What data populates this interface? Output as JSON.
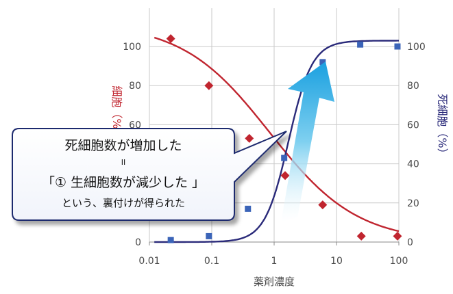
{
  "chart_data": {
    "type": "line",
    "xscale": "log",
    "xlim": [
      0.01,
      100
    ],
    "ylim": [
      0,
      110
    ],
    "x_ticks": [
      "0.01",
      "0.1",
      "1",
      "10",
      "100"
    ],
    "y_ticks": [
      "0",
      "20",
      "40",
      "60",
      "80",
      "100"
    ],
    "xlabel": "薬剤濃度",
    "ylabel_left": "細胞（%）",
    "ylabel_right": "死細胞（%）",
    "grid": true,
    "series": [
      {
        "axis": "left",
        "color": "#c0252f",
        "marker": "diamond",
        "points": [
          {
            "x": 0.022,
            "y": 104
          },
          {
            "x": 0.09,
            "y": 80
          },
          {
            "x": 0.4,
            "y": 53
          },
          {
            "x": 1.5,
            "y": 34
          },
          {
            "x": 6,
            "y": 19
          },
          {
            "x": 25,
            "y": 3
          },
          {
            "x": 95,
            "y": 3
          }
        ],
        "curve": {
          "top": 112,
          "bottom": 0,
          "ec50": 0.85,
          "slope": 0.62
        }
      },
      {
        "axis": "right",
        "color": "#2a2a7a",
        "marker_color": "#3b64b8",
        "marker": "square",
        "points": [
          {
            "x": 0.022,
            "y": 1
          },
          {
            "x": 0.09,
            "y": 3
          },
          {
            "x": 0.38,
            "y": 17
          },
          {
            "x": 1.45,
            "y": 43
          },
          {
            "x": 6,
            "y": 92
          },
          {
            "x": 24,
            "y": 101
          },
          {
            "x": 95,
            "y": 100
          }
        ],
        "curve": {
          "top": 103,
          "bottom": 0,
          "ec50": 1.7,
          "slope": 2.3
        }
      }
    ]
  },
  "callout": {
    "line1": "死細胞数が増加した",
    "line2": "II",
    "line3": "「① 生細胞数が減少した 」",
    "line4": "という、裏付けが得られた"
  }
}
